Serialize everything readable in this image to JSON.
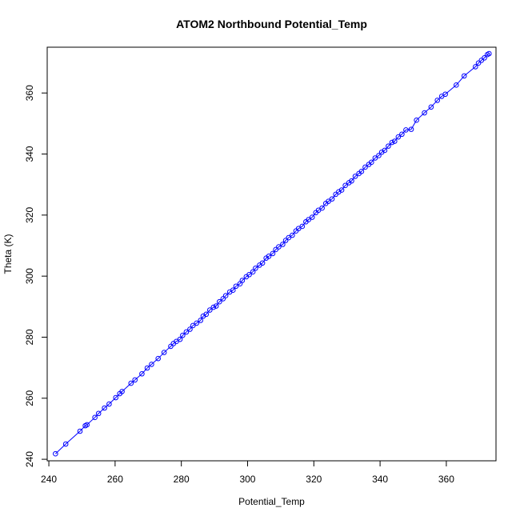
{
  "chart_data": {
    "type": "scatter",
    "title": "ATOM2 Northbound Potential_Temp",
    "xlabel": "Potential_Temp",
    "ylabel": "Theta (K)",
    "xlim": [
      239.5,
      375.0
    ],
    "ylim": [
      239.5,
      375.0
    ],
    "xticks": [
      "240",
      "260",
      "280",
      "300",
      "320",
      "340",
      "360"
    ],
    "yticks": [
      "240",
      "260",
      "280",
      "300",
      "320",
      "340",
      "360"
    ],
    "grid": false,
    "legend": "none",
    "series": [
      {
        "color": "#0000ff",
        "marker": "open-circle",
        "connected": true,
        "points": [
          [
            242.0,
            241.8
          ],
          [
            245.1,
            245.0
          ],
          [
            249.4,
            249.2
          ],
          [
            251.0,
            251.0
          ],
          [
            251.5,
            251.3
          ],
          [
            253.9,
            253.7
          ],
          [
            255.0,
            255.0
          ],
          [
            256.8,
            256.8
          ],
          [
            258.2,
            258.1
          ],
          [
            260.2,
            260.2
          ],
          [
            261.4,
            261.5
          ],
          [
            262.1,
            262.2
          ],
          [
            264.8,
            264.9
          ],
          [
            266.0,
            266.0
          ],
          [
            268.1,
            268.0
          ],
          [
            269.7,
            269.9
          ],
          [
            271.0,
            271.1
          ],
          [
            273.0,
            273.0
          ],
          [
            274.8,
            275.0
          ],
          [
            276.8,
            277.0
          ],
          [
            277.6,
            277.9
          ],
          [
            278.5,
            278.6
          ],
          [
            279.6,
            279.3
          ],
          [
            280.4,
            280.6
          ],
          [
            281.5,
            281.7
          ],
          [
            282.6,
            282.6
          ],
          [
            283.5,
            283.8
          ],
          [
            284.6,
            284.6
          ],
          [
            285.8,
            285.5
          ],
          [
            286.6,
            286.9
          ],
          [
            287.5,
            287.5
          ],
          [
            288.6,
            288.9
          ],
          [
            289.7,
            289.8
          ],
          [
            290.5,
            290.2
          ],
          [
            291.5,
            291.6
          ],
          [
            292.6,
            292.6
          ],
          [
            293.4,
            293.6
          ],
          [
            294.6,
            294.8
          ],
          [
            295.6,
            295.4
          ],
          [
            296.5,
            296.7
          ],
          [
            297.7,
            297.5
          ],
          [
            298.4,
            298.6
          ],
          [
            299.6,
            299.8
          ],
          [
            300.5,
            300.5
          ],
          [
            301.6,
            301.4
          ],
          [
            302.4,
            302.6
          ],
          [
            303.6,
            303.6
          ],
          [
            304.5,
            304.3
          ],
          [
            305.6,
            305.9
          ],
          [
            306.4,
            306.5
          ],
          [
            307.6,
            307.4
          ],
          [
            308.5,
            308.7
          ],
          [
            309.4,
            309.6
          ],
          [
            310.6,
            310.4
          ],
          [
            311.5,
            311.7
          ],
          [
            312.4,
            312.6
          ],
          [
            313.5,
            313.4
          ],
          [
            314.6,
            314.8
          ],
          [
            315.4,
            315.6
          ],
          [
            316.5,
            316.3
          ],
          [
            317.6,
            317.8
          ],
          [
            318.4,
            318.5
          ],
          [
            319.5,
            319.3
          ],
          [
            320.6,
            320.8
          ],
          [
            321.4,
            321.6
          ],
          [
            322.5,
            322.3
          ],
          [
            323.6,
            323.8
          ],
          [
            324.4,
            324.5
          ],
          [
            325.5,
            325.3
          ],
          [
            326.6,
            326.8
          ],
          [
            327.5,
            327.6
          ],
          [
            328.4,
            328.2
          ],
          [
            329.5,
            329.7
          ],
          [
            330.6,
            330.6
          ],
          [
            331.4,
            331.2
          ],
          [
            332.5,
            332.7
          ],
          [
            333.6,
            333.6
          ],
          [
            334.4,
            334.3
          ],
          [
            335.5,
            335.7
          ],
          [
            336.6,
            336.6
          ],
          [
            337.4,
            337.3
          ],
          [
            338.5,
            338.7
          ],
          [
            339.6,
            339.5
          ],
          [
            340.5,
            340.6
          ],
          [
            341.4,
            341.2
          ],
          [
            342.5,
            342.6
          ],
          [
            343.6,
            343.8
          ],
          [
            344.4,
            344.2
          ],
          [
            345.5,
            345.6
          ],
          [
            346.6,
            346.5
          ],
          [
            347.8,
            347.9
          ],
          [
            349.4,
            348.1
          ],
          [
            351.0,
            351.1
          ],
          [
            353.4,
            353.5
          ],
          [
            355.4,
            355.4
          ],
          [
            357.3,
            357.6
          ],
          [
            358.6,
            358.9
          ],
          [
            359.7,
            359.6
          ],
          [
            363.0,
            362.6
          ],
          [
            365.4,
            365.6
          ],
          [
            368.8,
            368.6
          ],
          [
            369.7,
            369.8
          ],
          [
            370.6,
            370.7
          ],
          [
            371.5,
            371.5
          ],
          [
            372.4,
            372.6
          ],
          [
            372.9,
            372.9
          ]
        ]
      }
    ]
  }
}
